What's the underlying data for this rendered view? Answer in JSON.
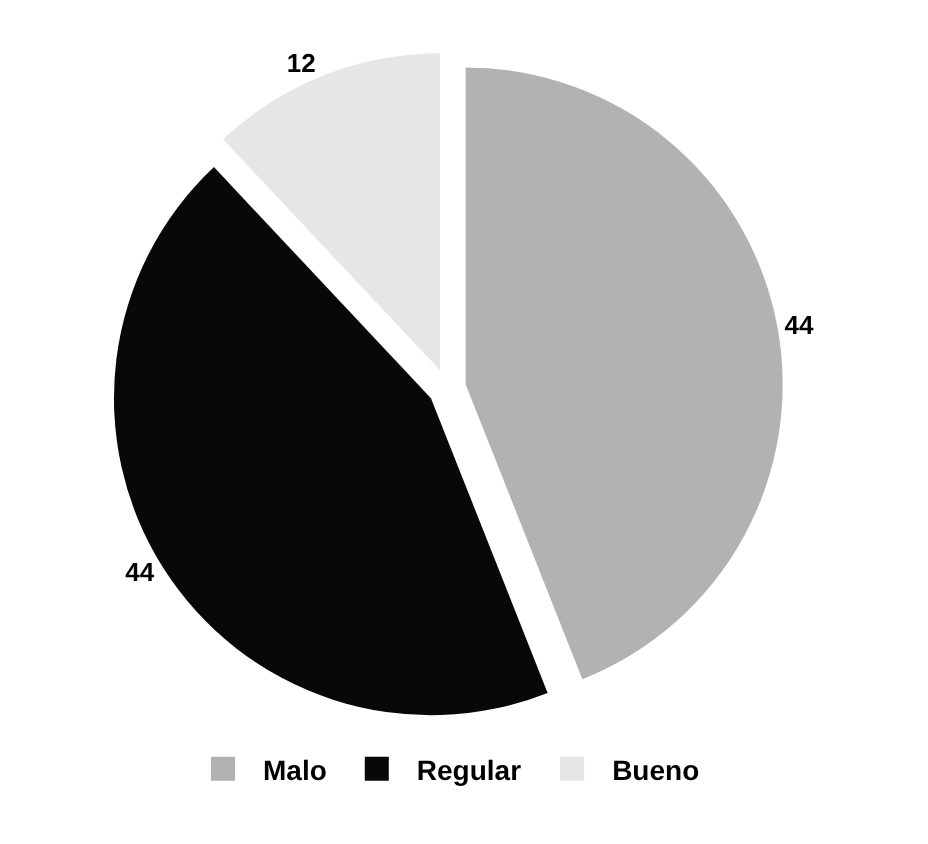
{
  "chart_data": {
    "type": "pie",
    "categories": [
      "Malo",
      "Regular",
      "Bueno"
    ],
    "values": [
      44,
      44,
      12
    ],
    "colors": [
      "#b2b2b2",
      "#080808",
      "#e6e6e6"
    ],
    "data_labels": true,
    "legend": "bottom"
  }
}
